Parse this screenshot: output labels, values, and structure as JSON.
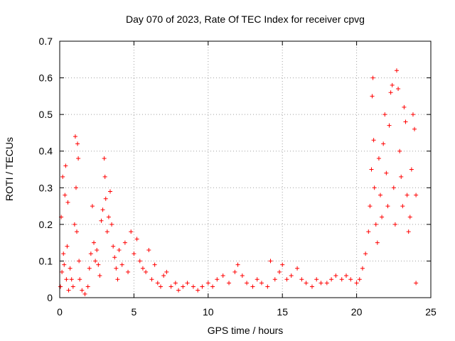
{
  "chart_data": {
    "type": "scatter",
    "title": "Day 070 of 2023, Rate Of TEC Index for receiver cpvg",
    "xlabel": "GPS time / hours",
    "ylabel": "ROTI / TECUs",
    "xlim": [
      0,
      25
    ],
    "ylim": [
      0,
      0.7
    ],
    "xticks": [
      0,
      5,
      10,
      15,
      20,
      25
    ],
    "yticks": [
      0,
      0.1,
      0.2,
      0.3,
      0.4,
      0.5,
      0.6,
      0.7
    ],
    "xtick_labels": [
      "0",
      "5",
      "10",
      "15",
      "20",
      "25"
    ],
    "ytick_labels": [
      "0",
      "0.1",
      "0.2",
      "0.3",
      "0.4",
      "0.5",
      "0.6",
      "0.7"
    ],
    "grid": true,
    "marker": "+",
    "color": "#ff0000",
    "series": [
      {
        "name": "ROTI",
        "points": [
          [
            0.05,
            0.03
          ],
          [
            0.1,
            0.22
          ],
          [
            0.15,
            0.07
          ],
          [
            0.2,
            0.33
          ],
          [
            0.25,
            0.12
          ],
          [
            0.3,
            0.09
          ],
          [
            0.35,
            0.28
          ],
          [
            0.4,
            0.36
          ],
          [
            0.45,
            0.05
          ],
          [
            0.5,
            0.14
          ],
          [
            0.55,
            0.26
          ],
          [
            0.6,
            0.02
          ],
          [
            0.7,
            0.08
          ],
          [
            0.8,
            0.05
          ],
          [
            0.9,
            0.03
          ],
          [
            1.0,
            0.2
          ],
          [
            1.05,
            0.44
          ],
          [
            1.1,
            0.3
          ],
          [
            1.15,
            0.18
          ],
          [
            1.2,
            0.42
          ],
          [
            1.25,
            0.38
          ],
          [
            1.3,
            0.1
          ],
          [
            1.35,
            0.05
          ],
          [
            1.5,
            0.02
          ],
          [
            1.7,
            0.01
          ],
          [
            1.9,
            0.03
          ],
          [
            2.0,
            0.08
          ],
          [
            2.1,
            0.12
          ],
          [
            2.2,
            0.25
          ],
          [
            2.3,
            0.15
          ],
          [
            2.4,
            0.1
          ],
          [
            2.5,
            0.13
          ],
          [
            2.6,
            0.09
          ],
          [
            2.7,
            0.06
          ],
          [
            2.8,
            0.21
          ],
          [
            2.9,
            0.24
          ],
          [
            3.0,
            0.38
          ],
          [
            3.05,
            0.33
          ],
          [
            3.1,
            0.27
          ],
          [
            3.2,
            0.18
          ],
          [
            3.3,
            0.22
          ],
          [
            3.4,
            0.29
          ],
          [
            3.5,
            0.2
          ],
          [
            3.6,
            0.14
          ],
          [
            3.7,
            0.11
          ],
          [
            3.8,
            0.08
          ],
          [
            3.9,
            0.05
          ],
          [
            4.0,
            0.13
          ],
          [
            4.2,
            0.09
          ],
          [
            4.4,
            0.15
          ],
          [
            4.6,
            0.07
          ],
          [
            4.8,
            0.18
          ],
          [
            5.0,
            0.12
          ],
          [
            5.2,
            0.16
          ],
          [
            5.4,
            0.1
          ],
          [
            5.6,
            0.08
          ],
          [
            5.8,
            0.07
          ],
          [
            6.0,
            0.13
          ],
          [
            6.2,
            0.05
          ],
          [
            6.4,
            0.09
          ],
          [
            6.6,
            0.04
          ],
          [
            6.8,
            0.03
          ],
          [
            7.0,
            0.06
          ],
          [
            7.2,
            0.07
          ],
          [
            7.5,
            0.03
          ],
          [
            7.8,
            0.04
          ],
          [
            8.0,
            0.02
          ],
          [
            8.3,
            0.03
          ],
          [
            8.6,
            0.04
          ],
          [
            9.0,
            0.03
          ],
          [
            9.3,
            0.02
          ],
          [
            9.6,
            0.03
          ],
          [
            10.0,
            0.04
          ],
          [
            10.3,
            0.03
          ],
          [
            10.6,
            0.05
          ],
          [
            11.0,
            0.06
          ],
          [
            11.4,
            0.04
          ],
          [
            11.8,
            0.07
          ],
          [
            12.0,
            0.09
          ],
          [
            12.3,
            0.06
          ],
          [
            12.6,
            0.04
          ],
          [
            13.0,
            0.03
          ],
          [
            13.3,
            0.05
          ],
          [
            13.6,
            0.04
          ],
          [
            14.0,
            0.03
          ],
          [
            14.2,
            0.1
          ],
          [
            14.5,
            0.05
          ],
          [
            14.8,
            0.07
          ],
          [
            15.0,
            0.09
          ],
          [
            15.3,
            0.05
          ],
          [
            15.6,
            0.06
          ],
          [
            16.0,
            0.08
          ],
          [
            16.3,
            0.05
          ],
          [
            16.6,
            0.04
          ],
          [
            17.0,
            0.03
          ],
          [
            17.3,
            0.05
          ],
          [
            17.6,
            0.04
          ],
          [
            18.0,
            0.04
          ],
          [
            18.3,
            0.05
          ],
          [
            18.6,
            0.06
          ],
          [
            19.0,
            0.05
          ],
          [
            19.3,
            0.06
          ],
          [
            19.6,
            0.05
          ],
          [
            20.0,
            0.04
          ],
          [
            20.2,
            0.05
          ],
          [
            20.4,
            0.08
          ],
          [
            20.6,
            0.12
          ],
          [
            20.8,
            0.18
          ],
          [
            20.9,
            0.25
          ],
          [
            21.0,
            0.35
          ],
          [
            21.05,
            0.55
          ],
          [
            21.1,
            0.6
          ],
          [
            21.15,
            0.43
          ],
          [
            21.2,
            0.3
          ],
          [
            21.3,
            0.2
          ],
          [
            21.4,
            0.15
          ],
          [
            21.5,
            0.38
          ],
          [
            21.6,
            0.28
          ],
          [
            21.7,
            0.22
          ],
          [
            21.8,
            0.42
          ],
          [
            21.9,
            0.5
          ],
          [
            22.0,
            0.34
          ],
          [
            22.1,
            0.25
          ],
          [
            22.2,
            0.47
          ],
          [
            22.3,
            0.56
          ],
          [
            22.4,
            0.58
          ],
          [
            22.5,
            0.3
          ],
          [
            22.6,
            0.2
          ],
          [
            22.7,
            0.62
          ],
          [
            22.8,
            0.57
          ],
          [
            22.9,
            0.4
          ],
          [
            23.0,
            0.33
          ],
          [
            23.1,
            0.25
          ],
          [
            23.2,
            0.52
          ],
          [
            23.3,
            0.48
          ],
          [
            23.4,
            0.28
          ],
          [
            23.5,
            0.18
          ],
          [
            23.6,
            0.22
          ],
          [
            23.7,
            0.35
          ],
          [
            23.8,
            0.5
          ],
          [
            23.9,
            0.46
          ],
          [
            24.0,
            0.04
          ],
          [
            24.0,
            0.28
          ]
        ]
      }
    ]
  }
}
